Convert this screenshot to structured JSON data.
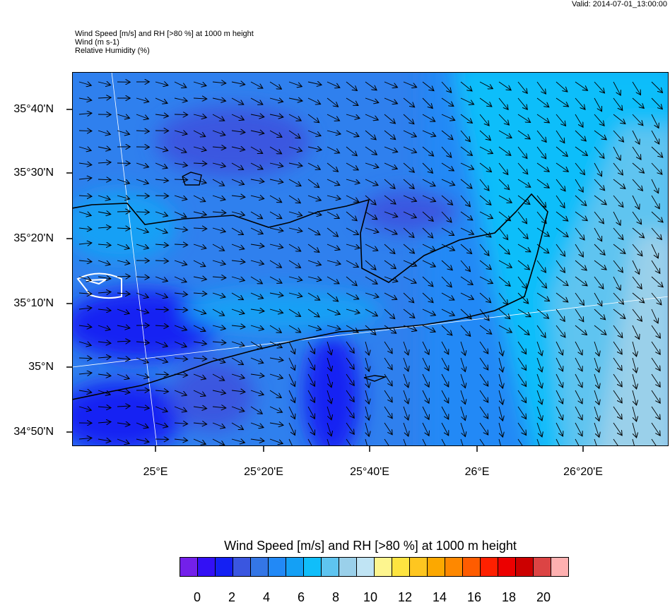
{
  "valid": "Valid: 2014-07-01_13:00:00",
  "titles": [
    "Wind Speed [m/s] and RH [>80 %] at 1000 m height",
    "Wind   (m s-1)",
    "Relative Humidity   (%)"
  ],
  "lat_labels": [
    "35°40'N",
    "35°30'N",
    "35°20'N",
    "35°10'N",
    "35°N",
    "34°50'N"
  ],
  "lon_labels": [
    "25°E",
    "25°20'E",
    "25°40'E",
    "26°E",
    "26°20'E"
  ],
  "colorbar": {
    "title": "Wind Speed [m/s] and RH [>80 %] at 1000 m height",
    "labels": [
      "0",
      "2",
      "4",
      "6",
      "8",
      "10",
      "12",
      "14",
      "16",
      "18",
      "20"
    ],
    "colors": [
      "#7320ea",
      "#3310f5",
      "#1420f3",
      "#3a56e0",
      "#3476e6",
      "#2289f6",
      "#14a0f5",
      "#10befa",
      "#5ec4f0",
      "#9ad0ea",
      "#c0e4f4",
      "#fdf58f",
      "#fde440",
      "#fec620",
      "#fca800",
      "#fe8800",
      "#fe5c00",
      "#fe2000",
      "#ec0000",
      "#cc0000",
      "#dc4444",
      "#feb0b0"
    ]
  },
  "chart_data": {
    "type": "map",
    "fields": [
      "wind speed (filled contours, m/s)",
      "wind vectors",
      "relative humidity >80% (white contour)"
    ],
    "lat_range": [
      "34°47'N",
      "35°45'N"
    ],
    "lon_range": [
      "24°44'E",
      "26°35'E"
    ],
    "wind_speed_range_shown": [
      1,
      9
    ],
    "wind_direction": "westerly in west, turning northwesterly in east"
  }
}
